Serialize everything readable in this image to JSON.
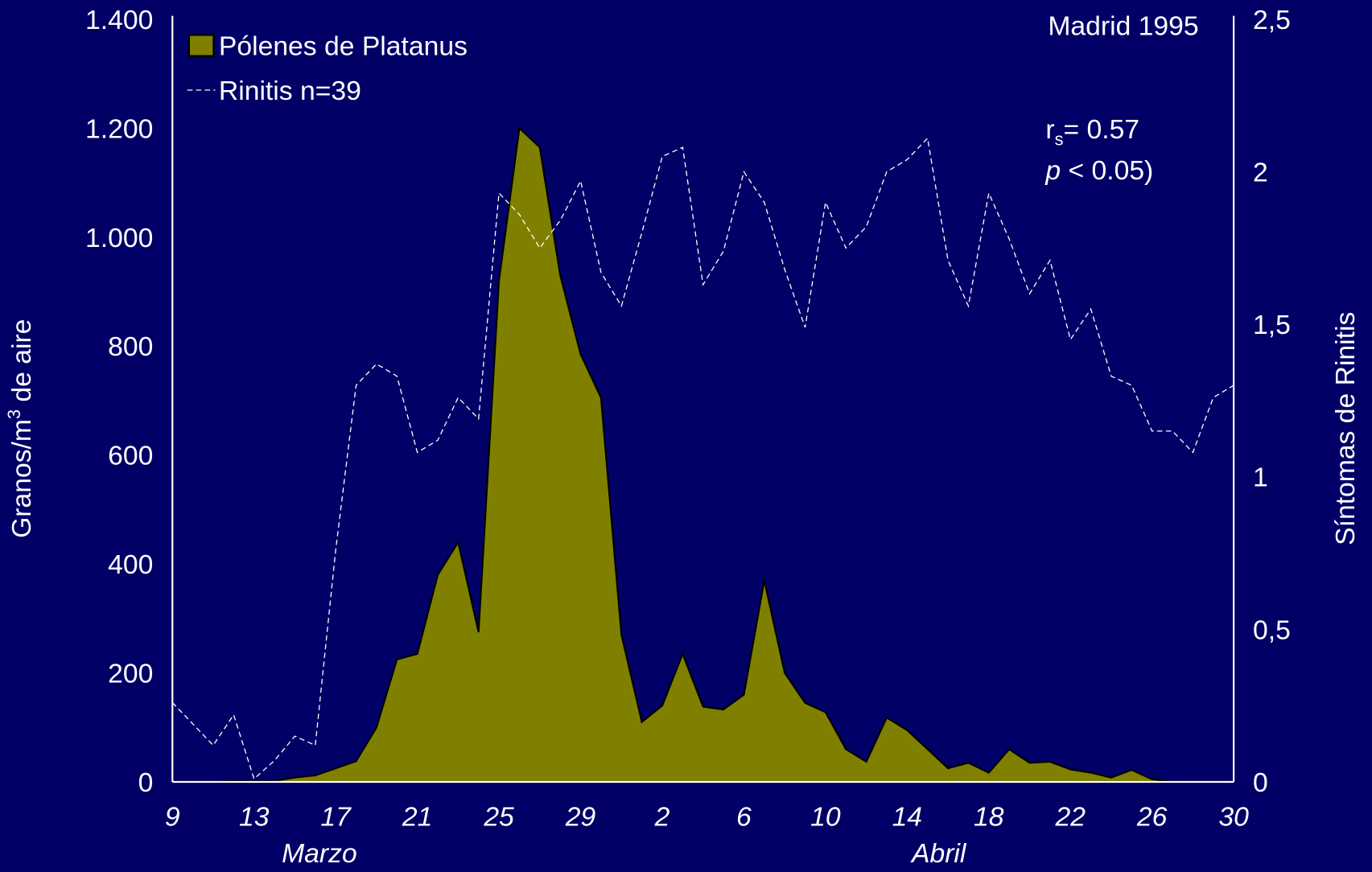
{
  "chart_data": {
    "type": "area",
    "categories": [
      "9",
      null,
      null,
      null,
      "13",
      null,
      null,
      null,
      "17",
      null,
      null,
      null,
      "21",
      null,
      null,
      null,
      "25",
      null,
      null,
      null,
      "29",
      null,
      null,
      null,
      "2",
      null,
      null,
      null,
      "6",
      null,
      null,
      null,
      "10",
      null,
      null,
      null,
      "14",
      null,
      null,
      null,
      "18",
      null,
      null,
      null,
      "22",
      null,
      null,
      null,
      "26",
      null,
      null,
      null,
      "30"
    ],
    "month_labels": [
      "Marzo",
      "Abril"
    ],
    "series": [
      {
        "name": "Pólenes de Platanus",
        "type": "area",
        "color": "#808000",
        "values": [
          0,
          0,
          0,
          2,
          2,
          2,
          8,
          12,
          25,
          38,
          100,
          225,
          235,
          380,
          440,
          275,
          920,
          1200,
          1165,
          930,
          785,
          705,
          270,
          110,
          140,
          235,
          138,
          133,
          160,
          370,
          200,
          145,
          128,
          60,
          37,
          118,
          95,
          60,
          25,
          35,
          17,
          60,
          35,
          37,
          23,
          17,
          8,
          22,
          5,
          0,
          0,
          0,
          0
        ]
      },
      {
        "name": "Rinitis n=39",
        "type": "line",
        "axis": "y2",
        "color": "#ffffff",
        "values": [
          0.26,
          0.19,
          0.12,
          0.22,
          0.01,
          0.07,
          0.15,
          0.12,
          0.76,
          1.3,
          1.37,
          1.33,
          1.08,
          1.12,
          1.26,
          1.19,
          1.93,
          1.86,
          1.75,
          1.84,
          1.97,
          1.67,
          1.56,
          1.8,
          2.05,
          2.08,
          1.63,
          1.74,
          2.0,
          1.9,
          1.68,
          1.49,
          1.9,
          1.75,
          1.82,
          2.0,
          2.04,
          2.11,
          1.71,
          1.56,
          1.93,
          1.78,
          1.6,
          1.71,
          1.45,
          1.55,
          1.33,
          1.3,
          1.15,
          1.15,
          1.08,
          1.26,
          1.3
        ]
      }
    ],
    "ylim": [
      0,
      1400
    ],
    "yticks": [
      0,
      200,
      400,
      600,
      800,
      {
        "value": 1000,
        "label": "1.000"
      },
      {
        "value": 1200,
        "label": "1.200"
      },
      {
        "value": 1400,
        "label": "1.400"
      }
    ],
    "y2lim": [
      0,
      2.5
    ],
    "y2ticks": [
      0,
      {
        "value": 0.5,
        "label": "0,5"
      },
      1,
      {
        "value": 1.5,
        "label": "1,5"
      },
      2,
      {
        "value": 2.5,
        "label": "2,5"
      }
    ],
    "ylabel": {
      "main": "Granos/m",
      "sup": "3",
      "rest": " de aire"
    },
    "y2label": "Síntomas de Rinitis",
    "annotations": {
      "location": "Madrid 1995",
      "correlation": {
        "base": "r",
        "sub": "s",
        "rest": "= 0.57"
      },
      "significance": {
        "italic": "p",
        "rest": " < 0.05)"
      }
    },
    "legend": "top-left"
  }
}
